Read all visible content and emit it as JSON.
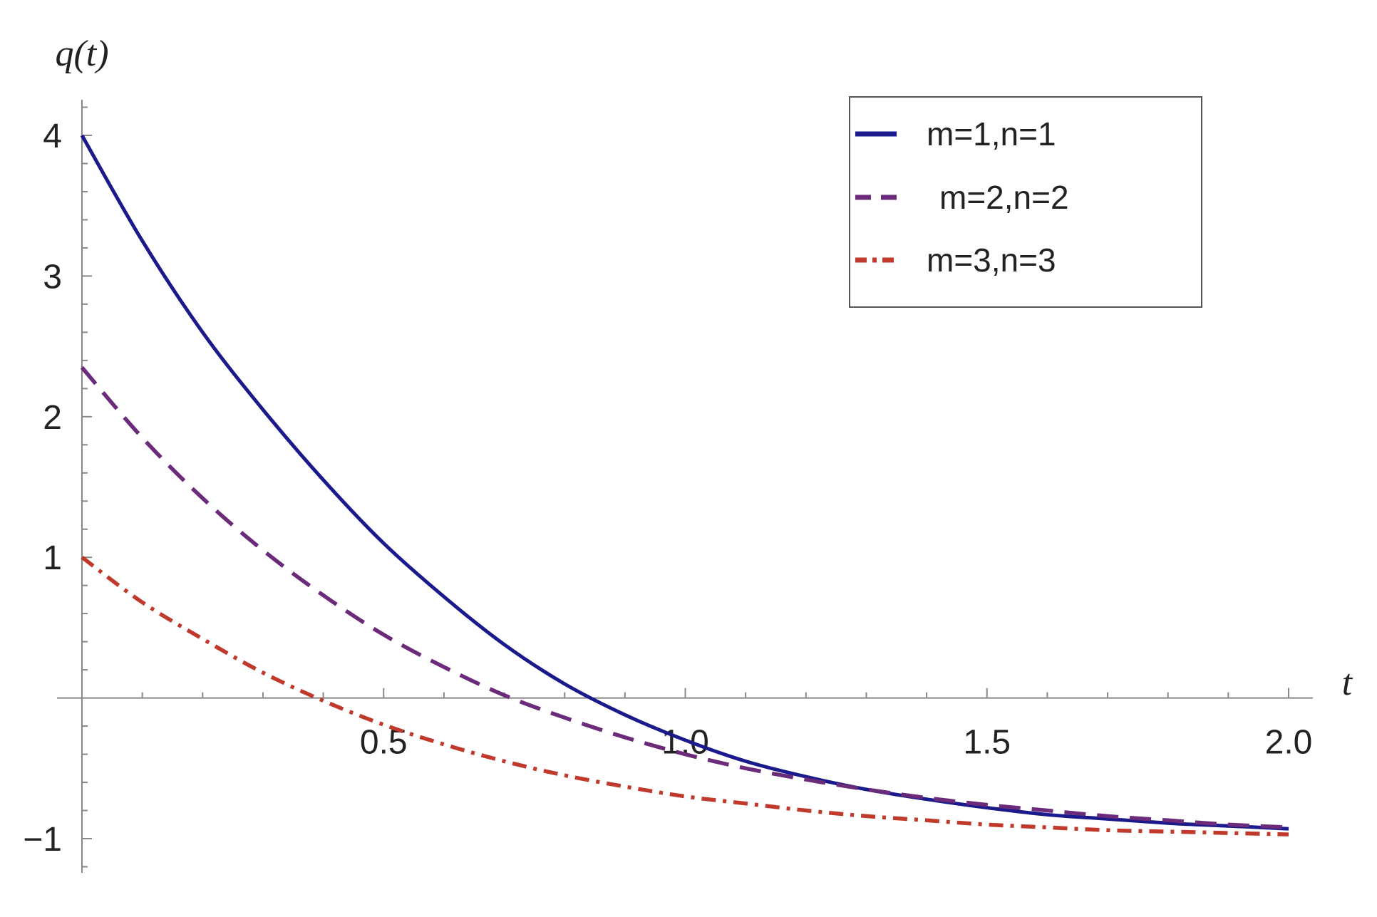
{
  "chart_data": {
    "type": "line",
    "title": "",
    "xlabel": "t",
    "ylabel": "q(t)",
    "xlim": [
      0,
      2.0
    ],
    "ylim": [
      -1.2,
      4.25
    ],
    "x_ticks": [
      0.5,
      1.0,
      1.5,
      2.0
    ],
    "x_tick_labels": [
      "0.5",
      "1.0",
      "1.5",
      "2.0"
    ],
    "y_ticks": [
      -1,
      1,
      2,
      3,
      4
    ],
    "y_tick_labels": [
      "-1",
      "1",
      "2",
      "3",
      "4"
    ],
    "grid": false,
    "legend_position": "top-right",
    "x": [
      0,
      0.1,
      0.2,
      0.3,
      0.4,
      0.5,
      0.6,
      0.7,
      0.8,
      0.9,
      1.0,
      1.1,
      1.2,
      1.3,
      1.4,
      1.5,
      1.6,
      1.7,
      1.8,
      1.9,
      2.0
    ],
    "series": [
      {
        "name": "m=1,n=1",
        "color": "#1a1a8c",
        "style": "solid",
        "values": [
          4.0,
          3.25,
          2.6,
          2.05,
          1.55,
          1.1,
          0.72,
          0.38,
          0.1,
          -0.12,
          -0.3,
          -0.45,
          -0.56,
          -0.65,
          -0.72,
          -0.78,
          -0.83,
          -0.86,
          -0.89,
          -0.91,
          -0.93
        ]
      },
      {
        "name": "m=2,n=2",
        "color": "#6b2a7a",
        "style": "dashed",
        "values": [
          2.35,
          1.85,
          1.42,
          1.05,
          0.73,
          0.45,
          0.22,
          0.02,
          -0.14,
          -0.28,
          -0.4,
          -0.5,
          -0.58,
          -0.65,
          -0.71,
          -0.76,
          -0.8,
          -0.84,
          -0.87,
          -0.9,
          -0.92
        ]
      },
      {
        "name": "m=3,n=3",
        "color": "#c0392b",
        "style": "dashdot",
        "values": [
          1.0,
          0.68,
          0.42,
          0.18,
          -0.02,
          -0.19,
          -0.33,
          -0.45,
          -0.55,
          -0.63,
          -0.7,
          -0.75,
          -0.8,
          -0.84,
          -0.87,
          -0.9,
          -0.92,
          -0.94,
          -0.95,
          -0.96,
          -0.97
        ]
      }
    ]
  }
}
